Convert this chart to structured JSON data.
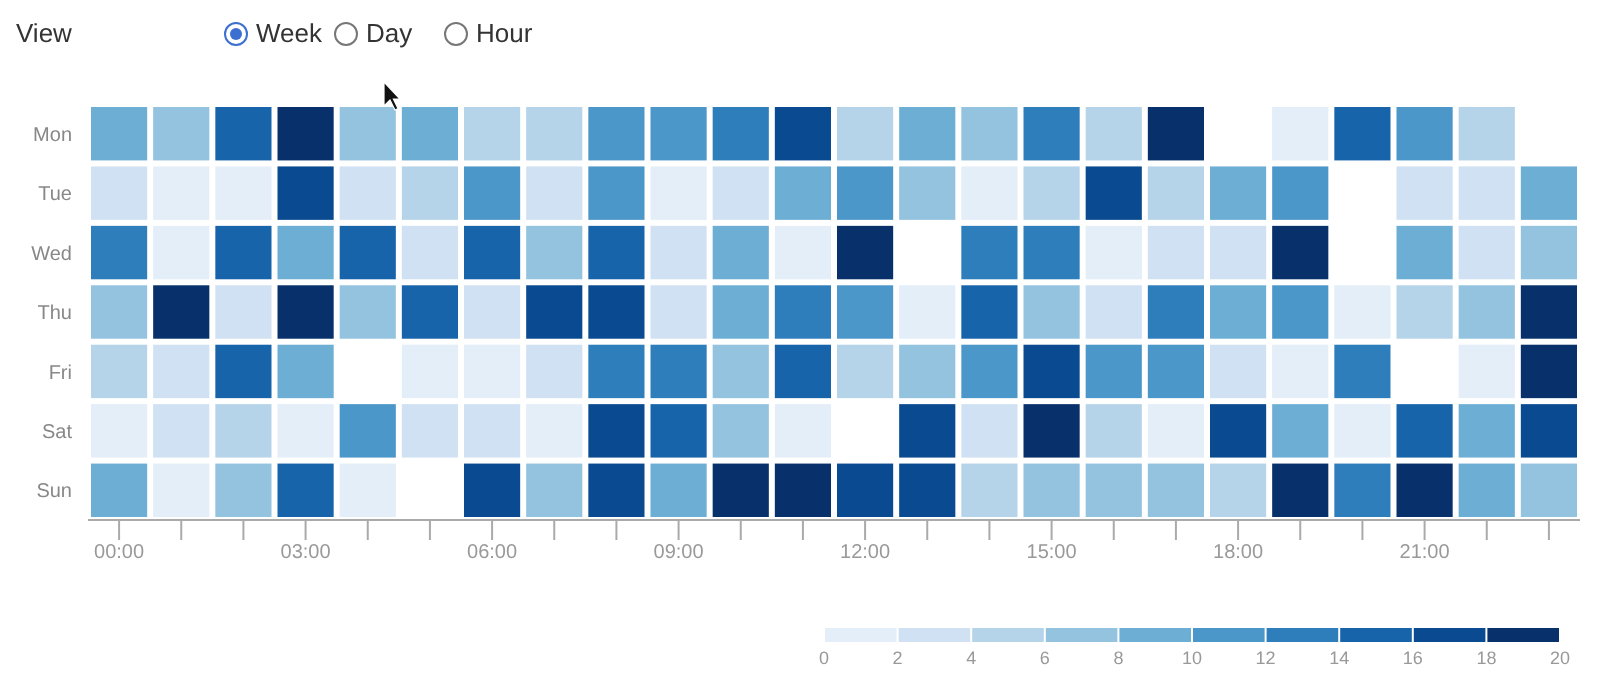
{
  "chart_data": {
    "type": "heatmap",
    "annotations": [
      "View",
      "Week",
      "Day",
      "Hour"
    ],
    "categories": [
      "00:00",
      null,
      null,
      "03:00",
      null,
      null,
      "06:00",
      null,
      null,
      "09:00",
      null,
      null,
      "12:00",
      null,
      null,
      "15:00",
      null,
      null,
      "18:00",
      null,
      null,
      "21:00",
      null,
      null
    ],
    "y_categories": [
      "Mon",
      "Tue",
      "Wed",
      "Thu",
      "Fri",
      "Sat",
      "Sun"
    ],
    "cells": [
      [
        9,
        7,
        15,
        19,
        7,
        9,
        5,
        5,
        11,
        11,
        13,
        17,
        5,
        9,
        7,
        13,
        5,
        19,
        null,
        1,
        15,
        11,
        5,
        null
      ],
      [
        3,
        1,
        1,
        17,
        3,
        5,
        11,
        3,
        11,
        1,
        3,
        9,
        11,
        7,
        1,
        5,
        17,
        5,
        9,
        11,
        null,
        3,
        3,
        9
      ],
      [
        13,
        1,
        15,
        9,
        15,
        3,
        15,
        7,
        15,
        3,
        9,
        1,
        19,
        null,
        13,
        13,
        1,
        3,
        3,
        19,
        null,
        9,
        3,
        7
      ],
      [
        7,
        19,
        3,
        19,
        7,
        15,
        3,
        17,
        17,
        3,
        9,
        13,
        11,
        1,
        15,
        7,
        3,
        13,
        9,
        11,
        1,
        5,
        7,
        19
      ],
      [
        5,
        3,
        15,
        9,
        null,
        1,
        1,
        3,
        13,
        13,
        7,
        15,
        5,
        7,
        11,
        17,
        11,
        11,
        3,
        1,
        13,
        null,
        1,
        19
      ],
      [
        1,
        3,
        5,
        1,
        11,
        3,
        3,
        1,
        17,
        15,
        7,
        1,
        null,
        17,
        3,
        19,
        5,
        1,
        17,
        9,
        1,
        15,
        9,
        17
      ],
      [
        9,
        1,
        7,
        15,
        1,
        null,
        17,
        7,
        17,
        9,
        19,
        19,
        17,
        17,
        5,
        7,
        7,
        7,
        5,
        19,
        13,
        19,
        9,
        7
      ]
    ],
    "clim": [
      0,
      20
    ],
    "cticks": [
      0,
      2,
      4,
      6,
      8,
      10,
      12,
      14,
      16,
      18,
      20
    ]
  }
}
